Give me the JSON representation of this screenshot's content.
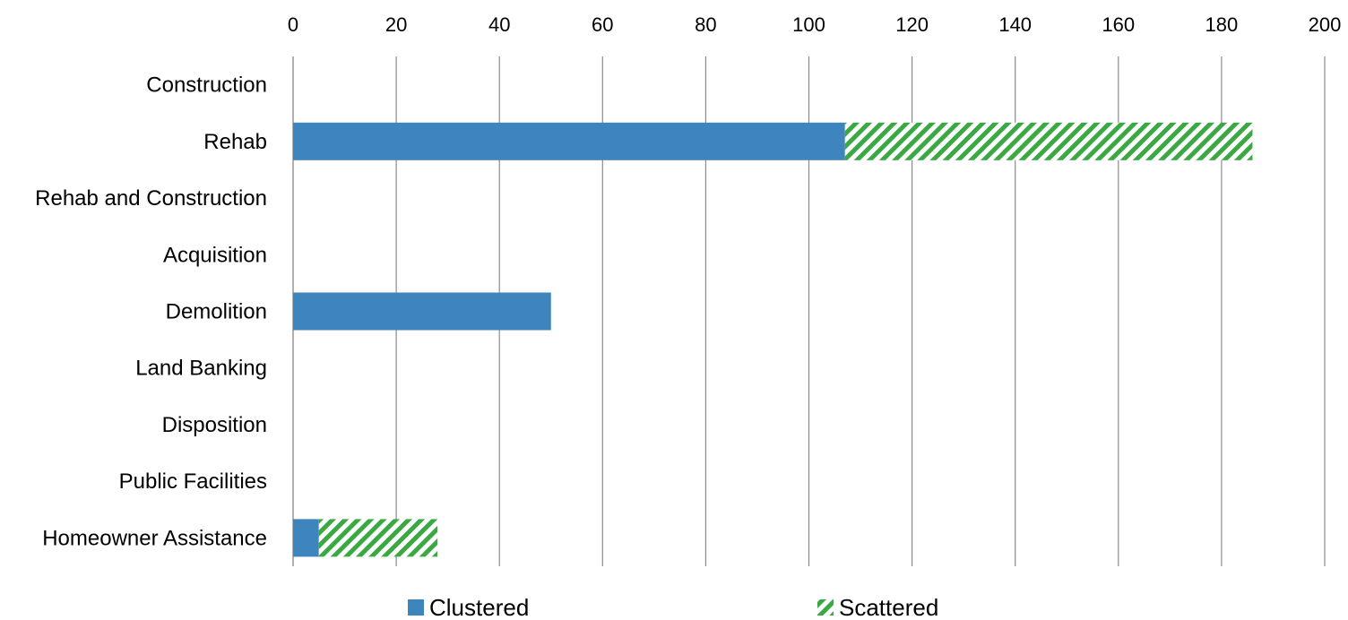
{
  "chart_data": {
    "type": "bar",
    "orientation": "horizontal",
    "stacked": true,
    "categories": [
      "Construction",
      "Rehab",
      "Rehab and Construction",
      "Acquisition",
      "Demolition",
      "Land Banking",
      "Disposition",
      "Public Facilities",
      "Homeowner Assistance"
    ],
    "series": [
      {
        "name": "Clustered",
        "values": [
          0,
          107,
          0,
          0,
          50,
          0,
          0,
          0,
          5
        ],
        "color": "#3f85bd",
        "pattern": "solid"
      },
      {
        "name": "Scattered",
        "values": [
          0,
          79,
          0,
          0,
          0,
          0,
          0,
          0,
          23
        ],
        "color": "#3aa843",
        "pattern": "diagonal-stripes"
      }
    ],
    "xlim": [
      0,
      200
    ],
    "xticks": [
      0,
      20,
      40,
      60,
      80,
      100,
      120,
      140,
      160,
      180,
      200
    ],
    "x_axis_position": "top",
    "grid": "vertical",
    "legend_position": "bottom",
    "title": "",
    "xlabel": "",
    "ylabel": ""
  }
}
